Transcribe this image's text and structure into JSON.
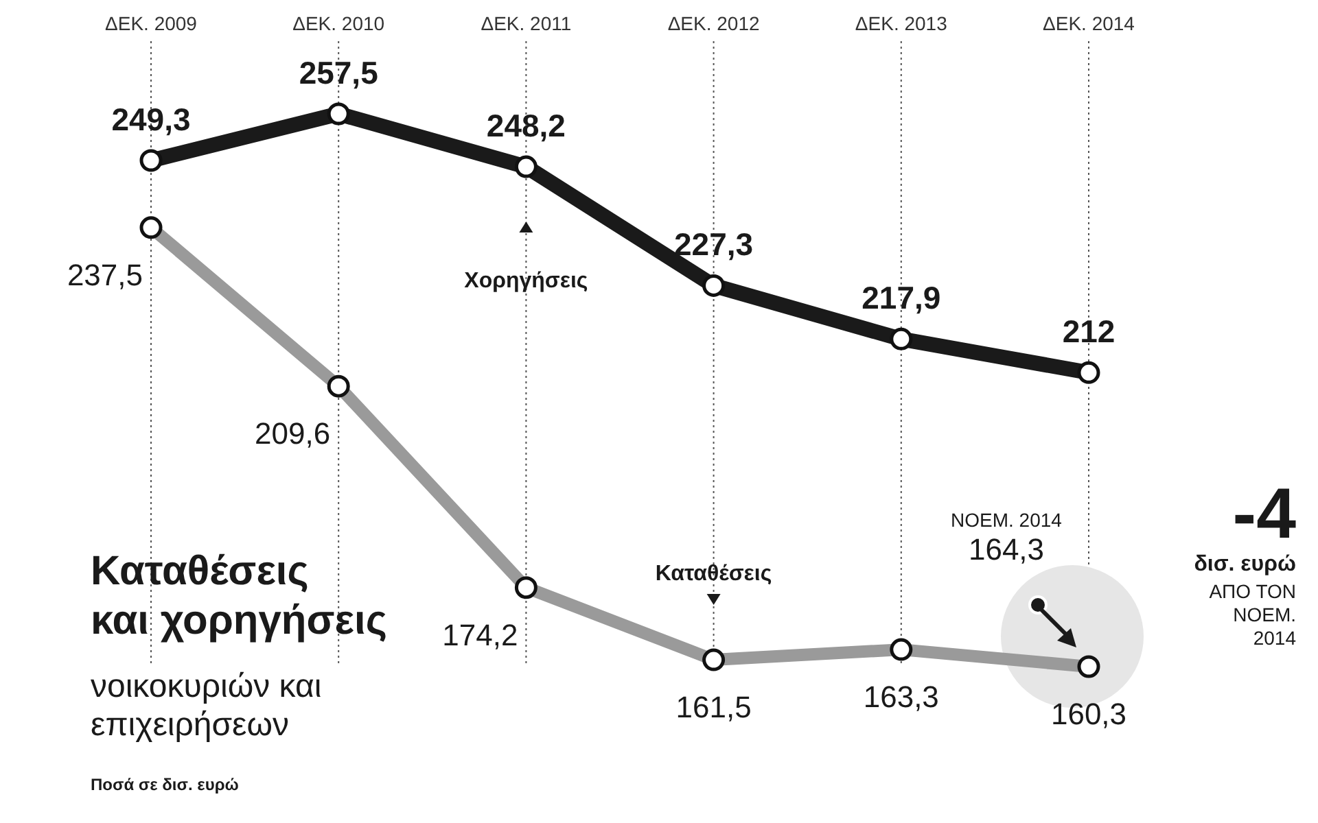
{
  "chart_data": {
    "type": "line",
    "title": "Καταθέσεις και χορηγήσεις",
    "subtitle": "νοικοκυριών και επιχειρήσεων",
    "categories": [
      "ΔΕΚ. 2009",
      "ΔΕΚ. 2010",
      "ΔΕΚ. 2011",
      "ΔΕΚ. 2012",
      "ΔΕΚ. 2013",
      "ΔΕΚ. 2014"
    ],
    "series": [
      {
        "name": "Χορηγήσεις",
        "color": "#1a1a1a",
        "values": [
          249.3,
          257.5,
          248.2,
          227.3,
          217.9,
          212
        ],
        "value_labels": [
          "249,3",
          "257,5",
          "248,2",
          "227,3",
          "217,9",
          "212"
        ]
      },
      {
        "name": "Καταθέσεις",
        "color": "#9a9a9a",
        "values": [
          237.5,
          209.6,
          174.2,
          161.5,
          163.3,
          160.3
        ],
        "value_labels": [
          "237,5",
          "209,6",
          "174,2",
          "161,5",
          "163,3",
          "160,3"
        ]
      }
    ],
    "annotations": [
      "ΝΟΕΜ. 2014",
      "164,3",
      "-4",
      "δισ. ευρώ",
      "ΑΠΟ ΤΟΝ ΝΟΕΜ. 2014",
      "Ποσά σε δισ. ευρώ"
    ],
    "grid": "x",
    "marker": "circle",
    "legend": false
  }
}
